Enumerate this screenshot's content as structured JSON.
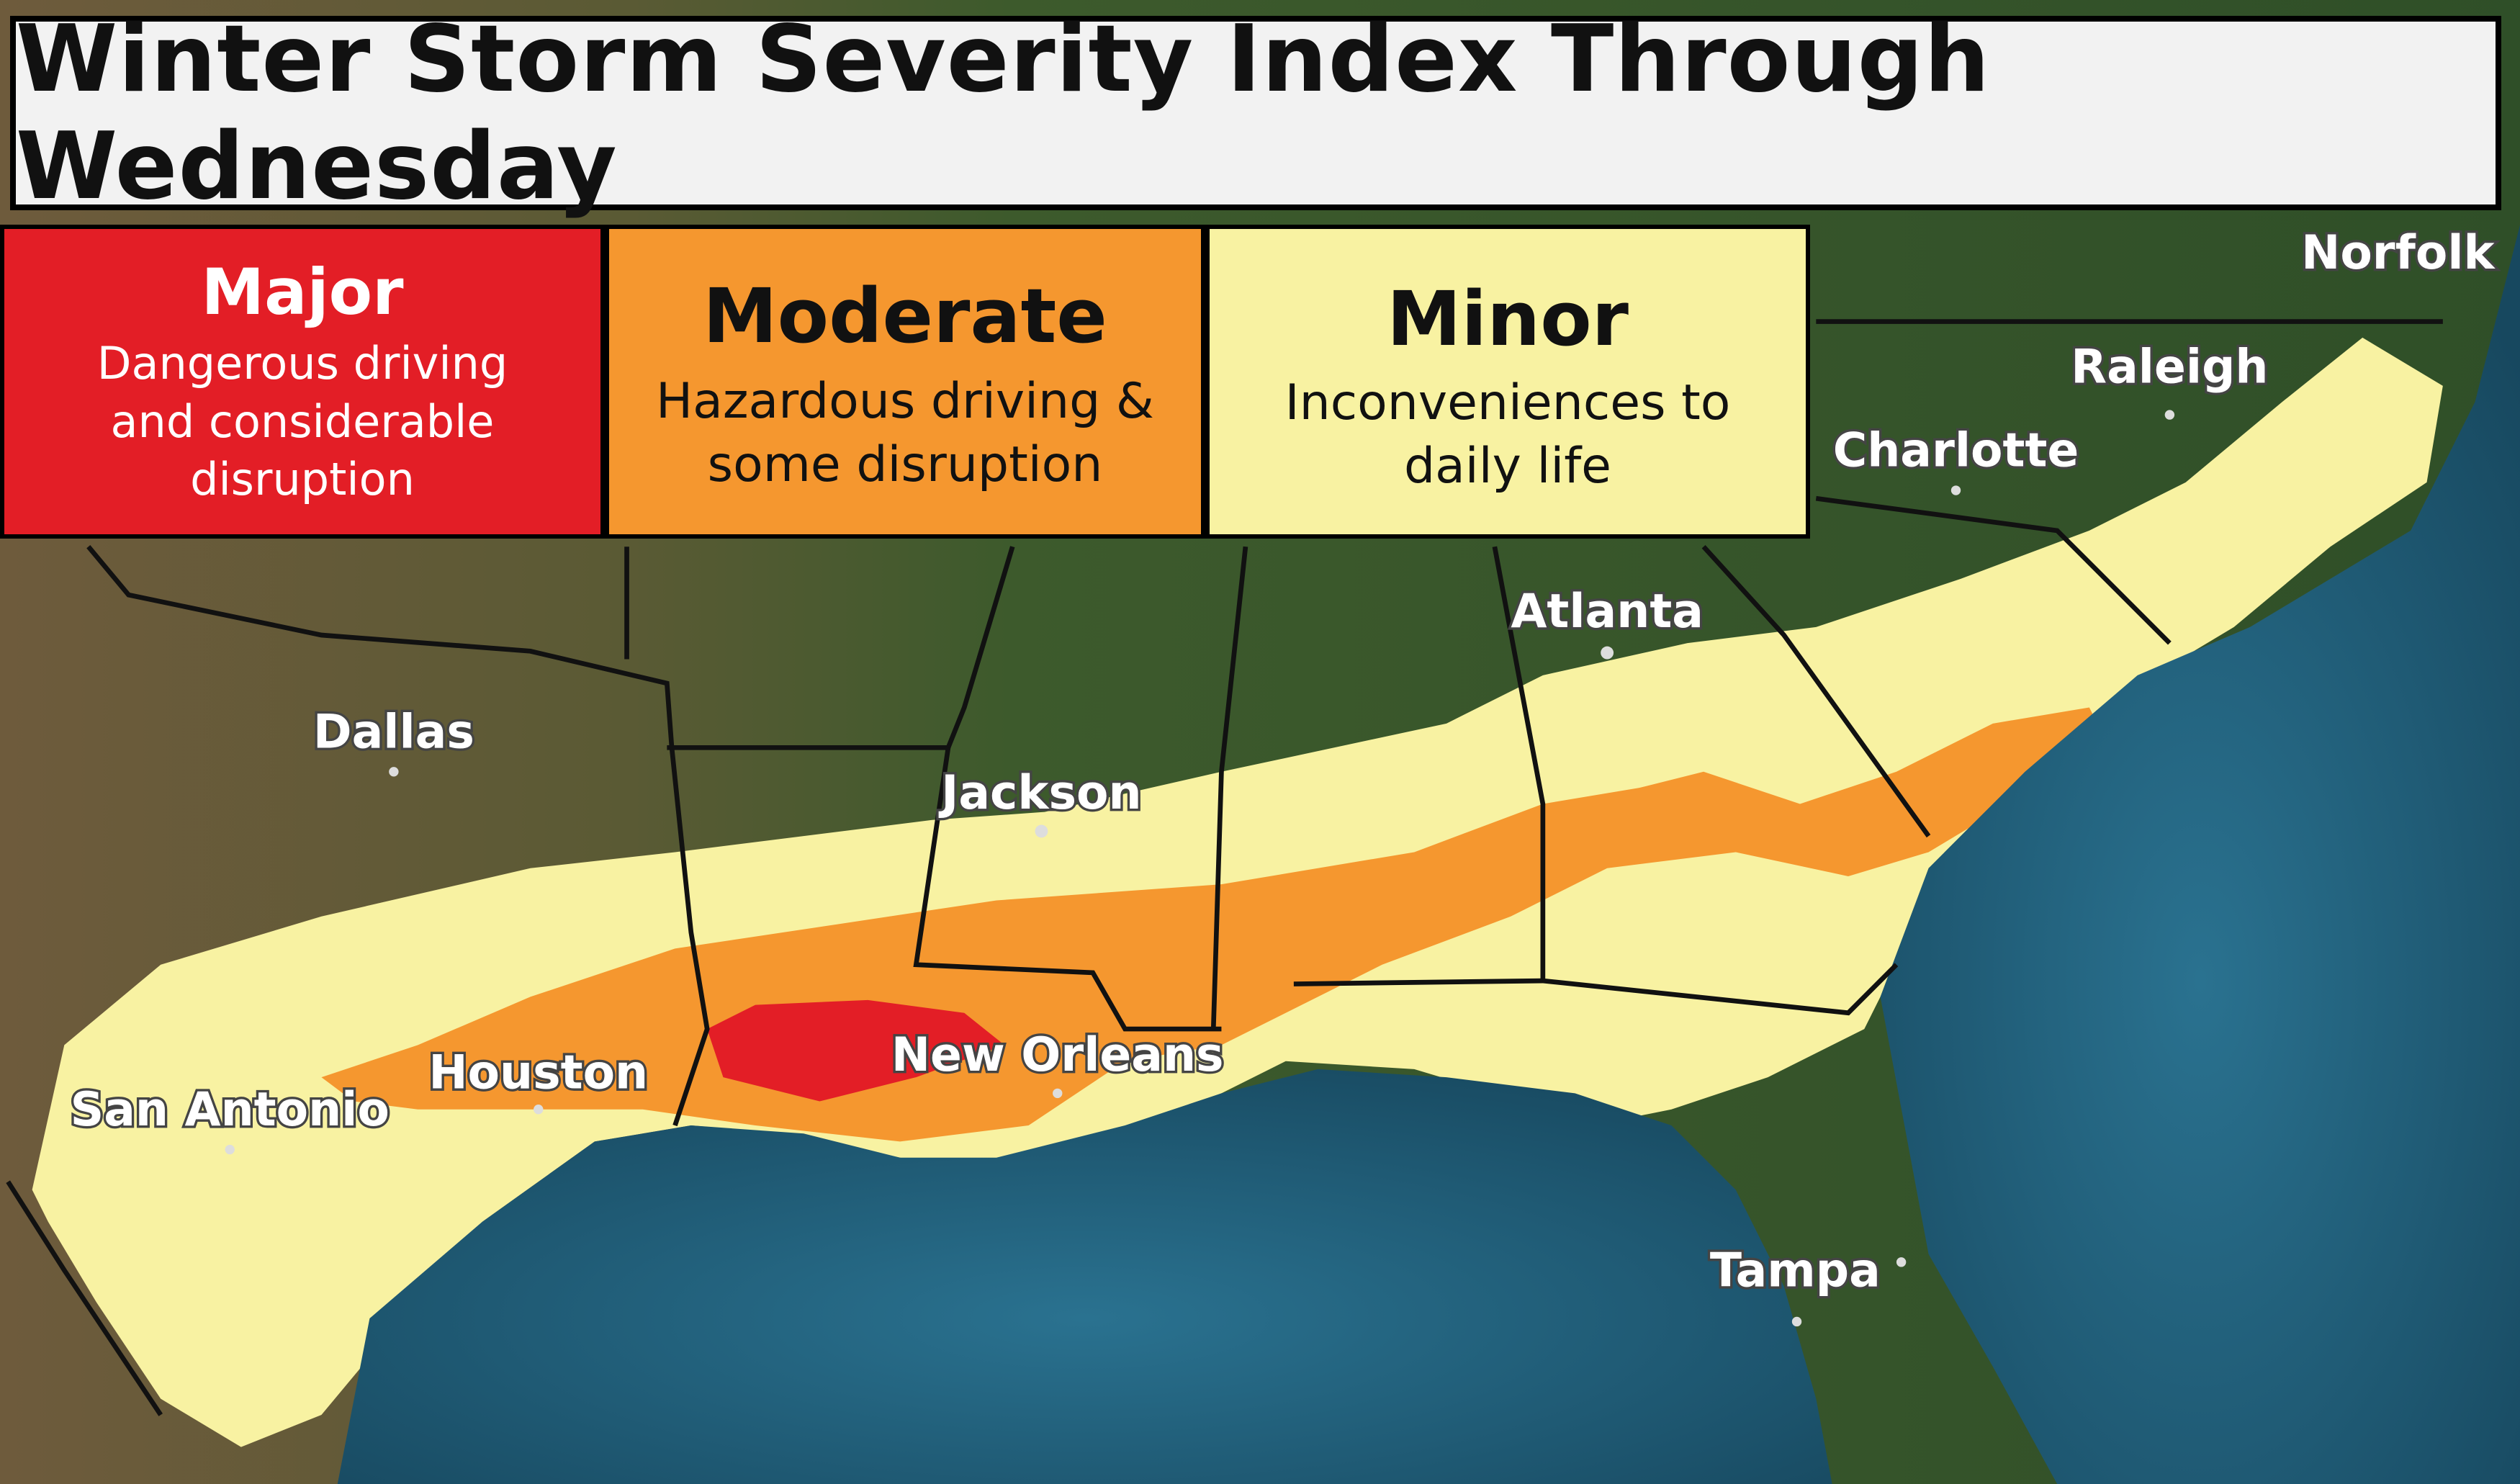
{
  "title": "Winter Storm Severity Index Through Wednesday",
  "legend": [
    {
      "label": "Major",
      "description": "Dangerous driving and considerable disruption",
      "color": "#e31e26"
    },
    {
      "label": "Moderate",
      "description": "Hazardous driving & some disruption",
      "color": "#f5972f"
    },
    {
      "label": "Minor",
      "description": "Inconveniences to daily life",
      "color": "#f8f2a2"
    }
  ],
  "cities": {
    "norfolk": "Norfolk",
    "raleigh": "Raleigh",
    "charlotte": "Charlotte",
    "atlanta": "Atlanta",
    "dallas": "Dallas",
    "jackson": "Jackson",
    "houston": "Houston",
    "san_antonio": "San Antonio",
    "new_orleans": "New Orleans",
    "tampa": "Tampa"
  },
  "colors": {
    "ocean": "#1f5f78",
    "land": "#3c5a2c",
    "land_dry": "#6b5a3a"
  }
}
